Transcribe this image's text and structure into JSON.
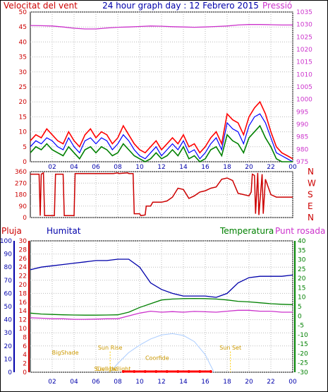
{
  "title": "24 hour graph day : 12 Febrero 2015",
  "colors": {
    "wind": "#ff0000",
    "gust": "#ff0000",
    "wind_avg": "#008000",
    "wind_mid": "#0000ff",
    "pressure": "#cc33cc",
    "direction": "#cc0000",
    "humidity": "#0000aa",
    "temperature": "#008000",
    "dewpoint": "#cc33cc",
    "rain": "#ff0000",
    "solar": "#aaccff",
    "sun_markers": "#ffcc00",
    "grid": "#bbbbbb",
    "frame": "#000000"
  },
  "chart_data": [
    {
      "type": "line",
      "name": "wind-pressure",
      "title": "24 hour graph day : 12 Febrero 2015",
      "left_axis_label": "Velocitat del vent",
      "right_axis_label": "Pressió",
      "x_ticks": [
        "02",
        "04",
        "06",
        "08",
        "10",
        "12",
        "14",
        "16",
        "18",
        "20",
        "22",
        "00"
      ],
      "xlim": [
        0,
        24
      ],
      "ylim_left": [
        0,
        50
      ],
      "y_ticks_left": [
        0,
        5,
        10,
        15,
        20,
        25,
        30,
        35,
        40,
        45,
        50
      ],
      "ylim_right": [
        975,
        1035
      ],
      "y_ticks_right": [
        975,
        980,
        985,
        990,
        995,
        1000,
        1005,
        1010,
        1015,
        1020,
        1025,
        1030,
        1035
      ],
      "pressure": {
        "x": [
          0,
          1,
          2,
          3,
          4,
          5,
          6,
          7,
          8,
          9,
          10,
          11,
          12,
          13,
          14,
          15,
          16,
          17,
          18,
          19,
          20,
          21,
          22,
          23,
          24
        ],
        "values": [
          1029.6,
          1029.5,
          1029.4,
          1029.0,
          1028.5,
          1028.2,
          1028.2,
          1028.6,
          1028.9,
          1029.0,
          1029.2,
          1029.4,
          1029.3,
          1029.1,
          1029.0,
          1028.9,
          1029.0,
          1029.2,
          1029.4,
          1029.8,
          1030.0,
          1030.0,
          1029.9,
          1029.8,
          1029.8
        ]
      },
      "gust": {
        "x": [
          0,
          0.5,
          1,
          1.5,
          2,
          2.5,
          3,
          3.5,
          4,
          4.5,
          5,
          5.5,
          6,
          6.5,
          7,
          7.5,
          8,
          8.5,
          9,
          9.5,
          10,
          10.5,
          11,
          11.5,
          12,
          12.5,
          13,
          13.5,
          14,
          14.5,
          15,
          15.5,
          16,
          16.5,
          17,
          17.5,
          18,
          18.5,
          19,
          19.5,
          20,
          20.5,
          21,
          21.5,
          22,
          22.5,
          23,
          23.5,
          24
        ],
        "values": [
          7,
          9,
          8,
          11,
          9,
          7,
          6,
          10,
          7,
          5,
          9,
          11,
          8,
          10,
          9,
          6,
          8,
          12,
          9,
          6,
          4,
          3,
          5,
          7,
          4,
          6,
          8,
          6,
          9,
          5,
          6,
          3,
          5,
          8,
          10,
          6,
          16,
          14,
          13,
          9,
          15,
          18,
          20,
          16,
          10,
          5,
          3,
          2,
          1
        ]
      },
      "wind_mid": {
        "x": [
          0,
          0.5,
          1,
          1.5,
          2,
          2.5,
          3,
          3.5,
          4,
          4.5,
          5,
          5.5,
          6,
          6.5,
          7,
          7.5,
          8,
          8.5,
          9,
          9.5,
          10,
          10.5,
          11,
          11.5,
          12,
          12.5,
          13,
          13.5,
          14,
          14.5,
          15,
          15.5,
          16,
          16.5,
          17,
          17.5,
          18,
          18.5,
          19,
          19.5,
          20,
          20.5,
          21,
          21.5,
          22,
          22.5,
          23,
          23.5,
          24
        ],
        "values": [
          5,
          7,
          6,
          8,
          7,
          5,
          4,
          8,
          5,
          3,
          7,
          8,
          6,
          8,
          7,
          4,
          6,
          9,
          7,
          4,
          2,
          1,
          3,
          5,
          2,
          4,
          6,
          4,
          7,
          3,
          4,
          1,
          3,
          6,
          8,
          4,
          13,
          11,
          10,
          6,
          12,
          15,
          16,
          13,
          8,
          3,
          2,
          1,
          0
        ]
      },
      "wind_avg": {
        "x": [
          0,
          0.5,
          1,
          1.5,
          2,
          2.5,
          3,
          3.5,
          4,
          4.5,
          5,
          5.5,
          6,
          6.5,
          7,
          7.5,
          8,
          8.5,
          9,
          9.5,
          10,
          10.5,
          11,
          11.5,
          12,
          12.5,
          13,
          13.5,
          14,
          14.5,
          15,
          15.5,
          16,
          16.5,
          17,
          17.5,
          18,
          18.5,
          19,
          19.5,
          20,
          20.5,
          21,
          21.5,
          22,
          22.5,
          23,
          23.5,
          24
        ],
        "values": [
          3,
          5,
          4,
          6,
          4,
          3,
          2,
          5,
          3,
          1,
          4,
          5,
          3,
          5,
          4,
          2,
          3,
          6,
          4,
          2,
          1,
          0,
          1,
          3,
          1,
          2,
          4,
          2,
          5,
          1,
          2,
          0,
          1,
          4,
          5,
          2,
          9,
          7,
          6,
          3,
          8,
          10,
          12,
          8,
          5,
          1,
          0,
          0,
          0
        ]
      }
    },
    {
      "type": "line",
      "name": "wind-direction",
      "y_ticks": [
        0,
        90,
        180,
        270,
        360
      ],
      "ylim": [
        0,
        360
      ],
      "compass_labels": [
        "N",
        "W",
        "S",
        "E",
        "N"
      ],
      "direction": {
        "x": [
          0,
          0.8,
          0.9,
          1.0,
          1.2,
          1.3,
          2.2,
          2.3,
          3.0,
          3.1,
          4.0,
          4.1,
          7.5,
          7.6,
          8.0,
          8.1,
          8.9,
          9.0,
          9.4,
          9.5,
          10.0,
          10.1,
          10.5,
          10.6,
          11.0,
          11.2,
          12.0,
          12.5,
          13.0,
          13.5,
          14.0,
          14.5,
          15.0,
          15.5,
          16.0,
          16.5,
          17.0,
          17.5,
          18.0,
          18.5,
          19.0,
          19.5,
          20.0,
          20.2,
          20.3,
          20.5,
          20.6,
          20.8,
          20.9,
          21.2,
          21.3,
          21.5,
          22.0,
          22.5,
          23.0,
          23.5,
          24.0
        ],
        "values": [
          340,
          340,
          15,
          340,
          350,
          15,
          15,
          340,
          340,
          15,
          15,
          345,
          345,
          345,
          350,
          345,
          350,
          345,
          345,
          30,
          30,
          15,
          20,
          90,
          90,
          120,
          120,
          130,
          160,
          230,
          220,
          150,
          170,
          200,
          210,
          230,
          240,
          300,
          310,
          290,
          190,
          180,
          170,
          200,
          340,
          330,
          30,
          350,
          20,
          340,
          30,
          300,
          180,
          160,
          160,
          160,
          160
        ]
      }
    },
    {
      "type": "line",
      "name": "humidity-temperature",
      "left_axis_label_1": "Pluja",
      "left_axis_label_2": "Humitat",
      "right_axis_label_1": "Temperatura",
      "right_axis_label_2": "Punt rosada",
      "x_ticks": [
        "02",
        "04",
        "06",
        "08",
        "10",
        "12",
        "14",
        "16",
        "18",
        "20",
        "22",
        "00"
      ],
      "xlim": [
        0,
        24
      ],
      "humidity_axis": [
        0,
        10,
        20,
        30,
        40,
        50,
        60,
        70,
        80,
        90,
        100
      ],
      "rain_axis": [
        0,
        2,
        4,
        6,
        8,
        10,
        12,
        14,
        16,
        18,
        20,
        22,
        24,
        26,
        28,
        30
      ],
      "temperature_axis": [
        -30,
        -25,
        -20,
        -15,
        -10,
        -5,
        0,
        5,
        10,
        15,
        20,
        25,
        30,
        35,
        40
      ],
      "humidity": {
        "x": [
          0,
          1,
          2,
          3,
          4,
          5,
          6,
          7,
          8,
          9,
          10,
          11,
          12,
          13,
          14,
          15,
          16,
          17,
          18,
          19,
          20,
          21,
          22,
          23,
          24
        ],
        "values": [
          78,
          80,
          81,
          82,
          83,
          84,
          85,
          85,
          86,
          86,
          80,
          68,
          63,
          60,
          58,
          58,
          58,
          57,
          60,
          68,
          72,
          73,
          73,
          73,
          74
        ]
      },
      "temperature": {
        "x": [
          0,
          1,
          2,
          3,
          4,
          5,
          6,
          7,
          8,
          9,
          10,
          11,
          12,
          13,
          14,
          15,
          16,
          17,
          18,
          19,
          20,
          21,
          22,
          23,
          24
        ],
        "values": [
          1.5,
          1.0,
          0.8,
          0.6,
          0.5,
          0.4,
          0.4,
          0.5,
          0.6,
          2.0,
          4.5,
          6.5,
          8.5,
          9.0,
          9.2,
          9.3,
          9.2,
          9.0,
          8.5,
          7.8,
          7.5,
          7.0,
          6.5,
          6.2,
          6.0
        ]
      },
      "dewpoint": {
        "x": [
          0,
          1,
          2,
          3,
          4,
          5,
          6,
          7,
          8,
          9,
          10,
          11,
          12,
          13,
          14,
          15,
          16,
          17,
          18,
          19,
          20,
          21,
          22,
          23,
          24
        ],
        "values": [
          -1.0,
          -1.2,
          -1.5,
          -1.5,
          -1.8,
          -1.8,
          -1.7,
          -1.5,
          -1.5,
          0.0,
          1.5,
          2.5,
          2.0,
          2.3,
          2.0,
          2.4,
          2.2,
          2.0,
          2.5,
          3.0,
          3.0,
          2.5,
          2.5,
          2.0,
          2.0
        ]
      },
      "solar": {
        "x": [
          7.3,
          8,
          9,
          10,
          11,
          12,
          13,
          14,
          15,
          16,
          16.8
        ],
        "values": [
          0,
          2.0,
          4.5,
          6.2,
          7.6,
          8.5,
          8.8,
          8.4,
          7.0,
          4.0,
          0
        ]
      },
      "rain_markers": [
        8.5,
        9.5,
        10.5,
        11.5,
        12.5,
        13.5,
        14.5,
        15.5,
        16.5
      ],
      "sun_events": [
        {
          "label": "BigShade",
          "x": 3.2,
          "y": 4.0
        },
        {
          "label": "Sun Rise",
          "x": 7.3,
          "y": 5.2
        },
        {
          "label": "Sunlight",
          "x": 6.9,
          "y": 0.3
        },
        {
          "label": "Civil twilight",
          "x": 7.6,
          "y": 0.3
        },
        {
          "label": "Coorfide",
          "x": 11.6,
          "y": 2.8
        },
        {
          "label": "Sun Set",
          "x": 18.3,
          "y": 5.2
        }
      ]
    }
  ]
}
